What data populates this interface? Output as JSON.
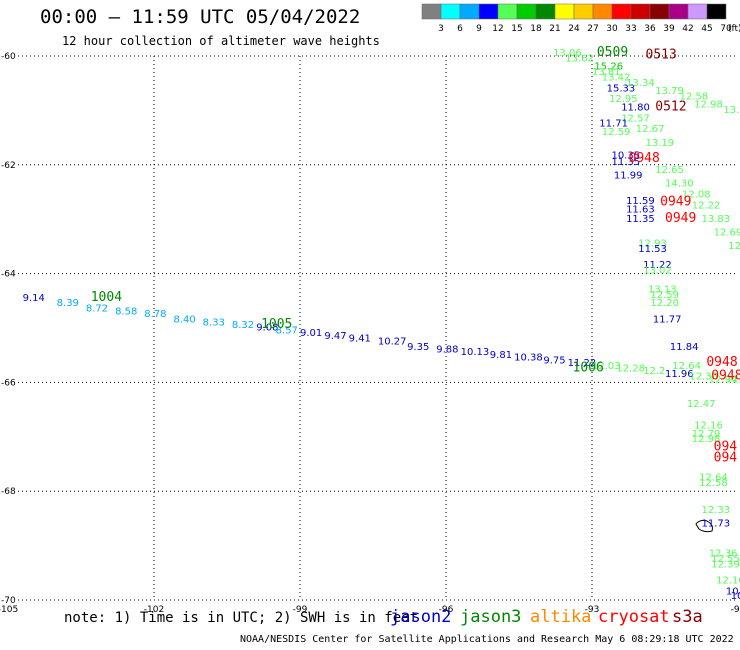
{
  "header": {
    "title": "00:00 — 11:59 UTC 05/04/2022",
    "subtitle": "12 hour collection of altimeter wave heights"
  },
  "colorbar": {
    "unit": "(ft)",
    "bins": [
      {
        "label": "3",
        "color": "#808080"
      },
      {
        "label": "6",
        "color": "#00ffff"
      },
      {
        "label": "9",
        "color": "#00aaff"
      },
      {
        "label": "12",
        "color": "#0000ff"
      },
      {
        "label": "15",
        "color": "#55ff55"
      },
      {
        "label": "18",
        "color": "#00cc00"
      },
      {
        "label": "21",
        "color": "#008800"
      },
      {
        "label": "24",
        "color": "#ffff00"
      },
      {
        "label": "27",
        "color": "#ffcc00"
      },
      {
        "label": "30",
        "color": "#ff8800"
      },
      {
        "label": "33",
        "color": "#ff0000"
      },
      {
        "label": "36",
        "color": "#cc0000"
      },
      {
        "label": "39",
        "color": "#880000"
      },
      {
        "label": "42",
        "color": "#aa0088"
      },
      {
        "label": "45",
        "color": "#cc99ff"
      },
      {
        "label": "70",
        "color": "#000000"
      }
    ]
  },
  "axes": {
    "lon_ticks": [
      "-105",
      "-102",
      "-99",
      "-96",
      "-93",
      "-90"
    ],
    "lat_ticks": [
      "-60",
      "-62",
      "-64",
      "-66",
      "-68",
      "-70"
    ],
    "lon_range": [
      -105,
      -90
    ],
    "lat_range": [
      -70,
      -60
    ]
  },
  "footer": {
    "note": "note: 1) Time is in UTC; 2) SWH is in feet",
    "credit": "NOAA/NESDIS Center for Satellite Applications and Research   May  6 08:29:18 UTC 2022",
    "satellites": [
      {
        "name": "jason2",
        "color": "#0000cc"
      },
      {
        "name": "jason3",
        "color": "#008800"
      },
      {
        "name": "altika",
        "color": "#ff8800"
      },
      {
        "name": "cryosat",
        "color": "#ff0000"
      },
      {
        "name": "s3a",
        "color": "#880000"
      }
    ]
  },
  "chart_data": {
    "type": "scatter",
    "x_unit": "longitude",
    "y_unit": "latitude",
    "xlim": [
      -105,
      -90
    ],
    "ylim": [
      -70,
      -60
    ],
    "tracks": [
      {
        "time_labels": [
          {
            "text": "1004",
            "lon": -103.3,
            "lat": -64.5,
            "color": "#008800"
          },
          {
            "text": "1005",
            "lon": -99.8,
            "lat": -65.0,
            "color": "#008800"
          },
          {
            "text": "1006",
            "lon": -93.4,
            "lat": -65.8,
            "color": "#008800"
          }
        ],
        "points": [
          {
            "text": "9.14",
            "lon": -104.7,
            "lat": -64.5,
            "color": "#0000cc"
          },
          {
            "text": "8.39",
            "lon": -104.0,
            "lat": -64.6,
            "color": "#00aaff"
          },
          {
            "text": "8.72",
            "lon": -103.4,
            "lat": -64.7,
            "color": "#00aaff"
          },
          {
            "text": "8.58",
            "lon": -102.8,
            "lat": -64.75,
            "color": "#00aaff"
          },
          {
            "text": "8.78",
            "lon": -102.2,
            "lat": -64.8,
            "color": "#00aaff"
          },
          {
            "text": "8.40",
            "lon": -101.6,
            "lat": -64.9,
            "color": "#00aaff"
          },
          {
            "text": "8.33",
            "lon": -101.0,
            "lat": -64.95,
            "color": "#00aaff"
          },
          {
            "text": "8.32",
            "lon": -100.4,
            "lat": -65.0,
            "color": "#00aaff"
          },
          {
            "text": "9.08",
            "lon": -99.9,
            "lat": -65.05,
            "color": "#0000cc"
          },
          {
            "text": "8.57",
            "lon": -99.5,
            "lat": -65.1,
            "color": "#00aaff"
          },
          {
            "text": "9.01",
            "lon": -99.0,
            "lat": -65.15,
            "color": "#0000cc"
          },
          {
            "text": "9.47",
            "lon": -98.5,
            "lat": -65.2,
            "color": "#0000cc"
          },
          {
            "text": "9.41",
            "lon": -98.0,
            "lat": -65.25,
            "color": "#0000cc"
          },
          {
            "text": "10.27",
            "lon": -97.4,
            "lat": -65.3,
            "color": "#0000cc"
          },
          {
            "text": "9.35",
            "lon": -96.8,
            "lat": -65.4,
            "color": "#0000cc"
          },
          {
            "text": "9.88",
            "lon": -96.2,
            "lat": -65.45,
            "color": "#0000cc"
          },
          {
            "text": "10.13",
            "lon": -95.7,
            "lat": -65.5,
            "color": "#0000cc"
          },
          {
            "text": "9.81",
            "lon": -95.1,
            "lat": -65.55,
            "color": "#0000cc"
          },
          {
            "text": "10.38",
            "lon": -94.6,
            "lat": -65.6,
            "color": "#0000cc"
          },
          {
            "text": "9.75",
            "lon": -94.0,
            "lat": -65.65,
            "color": "#0000cc"
          },
          {
            "text": "11.22",
            "lon": -93.5,
            "lat": -65.7,
            "color": "#0000cc"
          },
          {
            "text": "12.03",
            "lon": -93.0,
            "lat": -65.75,
            "color": "#55ff55"
          },
          {
            "text": "12.28",
            "lon": -92.5,
            "lat": -65.8,
            "color": "#55ff55"
          },
          {
            "text": "12.2",
            "lon": -91.95,
            "lat": -65.85,
            "color": "#55ff55"
          },
          {
            "text": "11.96",
            "lon": -91.5,
            "lat": -65.9,
            "color": "#0000cc"
          },
          {
            "text": "12.30",
            "lon": -91.0,
            "lat": -65.95,
            "color": "#55ff55"
          },
          {
            "text": "12.94",
            "lon": -90.6,
            "lat": -66.0,
            "color": "#55ff55"
          },
          {
            "text": "12.28",
            "lon": -90.25,
            "lat": -66.0,
            "color": "#55ff55"
          }
        ]
      },
      {
        "time_labels": [
          {
            "text": "0509",
            "lon": -92.9,
            "lat": -60.0,
            "color": "#008800"
          },
          {
            "text": "0513",
            "lon": -91.9,
            "lat": -60.05,
            "color": "#880000"
          },
          {
            "text": "0512",
            "lon": -91.7,
            "lat": -61.0,
            "color": "#880000"
          },
          {
            "text": "0948",
            "lon": -92.25,
            "lat": -61.95,
            "color": "#ff0000"
          },
          {
            "text": "0949",
            "lon": -91.6,
            "lat": -62.75,
            "color": "#ff0000"
          },
          {
            "text": "0949",
            "lon": -91.5,
            "lat": -63.05,
            "color": "#ff0000"
          },
          {
            "text": "0948",
            "lon": -90.65,
            "lat": -65.7,
            "color": "#ff0000"
          },
          {
            "text": "0948",
            "lon": -90.55,
            "lat": -65.95,
            "color": "#ff0000"
          },
          {
            "text": "094",
            "lon": -90.5,
            "lat": -67.25,
            "color": "#ff0000"
          },
          {
            "text": "094",
            "lon": -90.5,
            "lat": -67.45,
            "color": "#ff0000"
          }
        ],
        "points": [
          {
            "text": "13.06",
            "lon": -93.8,
            "lat": -60.0,
            "color": "#55ff55"
          },
          {
            "text": "13.62",
            "lon": -93.55,
            "lat": -60.1,
            "color": "#55ff55"
          },
          {
            "text": "15.26",
            "lon": -92.95,
            "lat": -60.25,
            "color": "#00cc00"
          },
          {
            "text": "13.81",
            "lon": -93.0,
            "lat": -60.35,
            "color": "#55ff55"
          },
          {
            "text": "13.42",
            "lon": -92.8,
            "lat": -60.45,
            "color": "#55ff55"
          },
          {
            "text": "15.33",
            "lon": -92.7,
            "lat": -60.65,
            "color": "#0000cc"
          },
          {
            "text": "13.34",
            "lon": -92.3,
            "lat": -60.55,
            "color": "#55ff55"
          },
          {
            "text": "13.79",
            "lon": -91.7,
            "lat": -60.7,
            "color": "#55ff55"
          },
          {
            "text": "12.58",
            "lon": -91.2,
            "lat": -60.8,
            "color": "#55ff55"
          },
          {
            "text": "12.98",
            "lon": -90.9,
            "lat": -60.95,
            "color": "#55ff55"
          },
          {
            "text": "13.92",
            "lon": -90.3,
            "lat": -61.05,
            "color": "#55ff55"
          },
          {
            "text": "14.2",
            "lon": -89.9,
            "lat": -61.2,
            "color": "#55ff55"
          },
          {
            "text": "12.95",
            "lon": -92.65,
            "lat": -60.85,
            "color": "#55ff55"
          },
          {
            "text": "11.80",
            "lon": -92.4,
            "lat": -61.0,
            "color": "#0000cc"
          },
          {
            "text": "12.57",
            "lon": -92.4,
            "lat": -61.2,
            "color": "#55ff55"
          },
          {
            "text": "11.71",
            "lon": -92.85,
            "lat": -61.3,
            "color": "#0000cc"
          },
          {
            "text": "12.67",
            "lon": -92.1,
            "lat": -61.4,
            "color": "#55ff55"
          },
          {
            "text": "12.59",
            "lon": -92.8,
            "lat": -61.45,
            "color": "#55ff55"
          },
          {
            "text": "13.19",
            "lon": -91.9,
            "lat": -61.65,
            "color": "#55ff55"
          },
          {
            "text": "10.35",
            "lon": -92.6,
            "lat": -61.88,
            "color": "#0000cc"
          },
          {
            "text": "11.35",
            "lon": -92.6,
            "lat": -62.0,
            "color": "#0000cc"
          },
          {
            "text": "12.65",
            "lon": -91.7,
            "lat": -62.15,
            "color": "#55ff55"
          },
          {
            "text": "11.99",
            "lon": -92.55,
            "lat": -62.25,
            "color": "#0000cc"
          },
          {
            "text": "14.30",
            "lon": -91.5,
            "lat": -62.4,
            "color": "#55ff55"
          },
          {
            "text": "12.08",
            "lon": -91.15,
            "lat": -62.6,
            "color": "#55ff55"
          },
          {
            "text": "11.59",
            "lon": -92.3,
            "lat": -62.72,
            "color": "#0000cc"
          },
          {
            "text": "12.22",
            "lon": -90.95,
            "lat": -62.8,
            "color": "#55ff55"
          },
          {
            "text": "11.63",
            "lon": -92.3,
            "lat": -62.88,
            "color": "#0000cc"
          },
          {
            "text": "13.83",
            "lon": -90.75,
            "lat": -63.05,
            "color": "#55ff55"
          },
          {
            "text": "11.35",
            "lon": -92.3,
            "lat": -63.05,
            "color": "#0000cc"
          },
          {
            "text": "12.69",
            "lon": -90.5,
            "lat": -63.3,
            "color": "#55ff55"
          },
          {
            "text": "12.93",
            "lon": -92.05,
            "lat": -63.5,
            "color": "#55ff55"
          },
          {
            "text": "12.5",
            "lon": -90.2,
            "lat": -63.55,
            "color": "#55ff55"
          },
          {
            "text": "11.53",
            "lon": -92.05,
            "lat": -63.6,
            "color": "#0000cc"
          },
          {
            "text": "12.",
            "lon": -89.95,
            "lat": -63.8,
            "color": "#55ff55"
          },
          {
            "text": "11.22",
            "lon": -91.95,
            "lat": -63.9,
            "color": "#0000cc"
          },
          {
            "text": "13.02",
            "lon": -91.95,
            "lat": -64.0,
            "color": "#55ff55"
          },
          {
            "text": "13.13",
            "lon": -91.85,
            "lat": -64.35,
            "color": "#55ff55"
          },
          {
            "text": "12.59",
            "lon": -91.8,
            "lat": -64.45,
            "color": "#55ff55"
          },
          {
            "text": "12.20",
            "lon": -91.8,
            "lat": -64.6,
            "color": "#55ff55"
          },
          {
            "text": "11.77",
            "lon": -91.75,
            "lat": -64.9,
            "color": "#0000cc"
          },
          {
            "text": "11.84",
            "lon": -91.4,
            "lat": -65.4,
            "color": "#0000cc"
          },
          {
            "text": "12.64",
            "lon": -91.35,
            "lat": -65.75,
            "color": "#55ff55"
          },
          {
            "text": "12.47",
            "lon": -91.05,
            "lat": -66.45,
            "color": "#55ff55"
          },
          {
            "text": "12.16",
            "lon": -90.9,
            "lat": -66.85,
            "color": "#55ff55"
          },
          {
            "text": "12.79",
            "lon": -90.95,
            "lat": -67.0,
            "color": "#55ff55"
          },
          {
            "text": "12.98",
            "lon": -90.95,
            "lat": -67.1,
            "color": "#55ff55"
          },
          {
            "text": "12.64",
            "lon": -90.8,
            "lat": -67.8,
            "color": "#55ff55"
          },
          {
            "text": "12.58",
            "lon": -90.8,
            "lat": -67.9,
            "color": "#55ff55"
          },
          {
            "text": "12.33",
            "lon": -90.75,
            "lat": -68.4,
            "color": "#55ff55"
          },
          {
            "text": "11.73",
            "lon": -90.75,
            "lat": -68.65,
            "color": "#0000cc"
          },
          {
            "text": "12.36",
            "lon": -90.6,
            "lat": -69.2,
            "color": "#55ff55"
          },
          {
            "text": "12.55",
            "lon": -90.55,
            "lat": -69.3,
            "color": "#55ff55"
          },
          {
            "text": "12.39",
            "lon": -90.55,
            "lat": -69.4,
            "color": "#55ff55"
          },
          {
            "text": "12.10",
            "lon": -90.45,
            "lat": -69.7,
            "color": "#55ff55"
          },
          {
            "text": "10.51",
            "lon": -90.25,
            "lat": -69.9,
            "color": "#0000cc"
          },
          {
            "text": "10.58",
            "lon": -90.15,
            "lat": -69.98,
            "color": "#0000cc"
          },
          {
            "text": "10",
            "lon": -89.9,
            "lat": -70.55,
            "color": "#0000cc"
          },
          {
            "text": "10.",
            "lon": -89.9,
            "lat": -70.65,
            "color": "#0000cc"
          }
        ]
      }
    ]
  }
}
